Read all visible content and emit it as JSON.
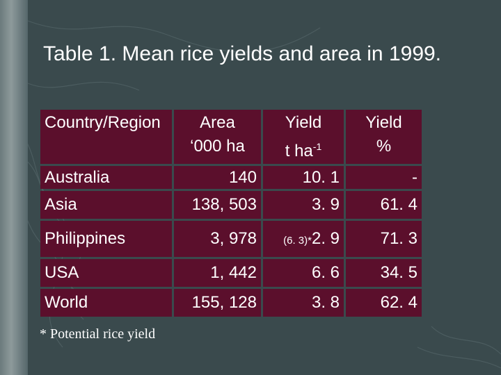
{
  "slide": {
    "title": "Table 1. Mean rice yields and area in 1999."
  },
  "table": {
    "headers": {
      "country": "Country/Region",
      "area_line1": "Area",
      "area_line2": "‘000 ha",
      "yield_line1": "Yield",
      "yield_unit_base": "t ha",
      "yield_unit_exp": "-1",
      "pct_line1": "Yield",
      "pct_line2": "%"
    },
    "rows": [
      {
        "country": "Australia",
        "area": "140",
        "yield_prefix": "",
        "yield": "10. 1",
        "pct": "-"
      },
      {
        "country": "Asia",
        "area": "138, 503",
        "yield_prefix": "",
        "yield": "3. 9",
        "pct": "61. 4"
      },
      {
        "country": "Philippines",
        "area": "3, 978",
        "yield_prefix": "(6. 3)*",
        "yield": "2. 9",
        "pct": "71. 3"
      },
      {
        "country": "USA",
        "area": "1, 442",
        "yield_prefix": "",
        "yield": "6. 6",
        "pct": "34. 5"
      },
      {
        "country": "World",
        "area": "155, 128",
        "yield_prefix": "",
        "yield": "3. 8",
        "pct": "62. 4"
      }
    ]
  },
  "footnote": "* Potential rice yield",
  "colors": {
    "background": "#3a4a4d",
    "cell_fill": "#5b0f2c",
    "text": "#ffffff"
  }
}
